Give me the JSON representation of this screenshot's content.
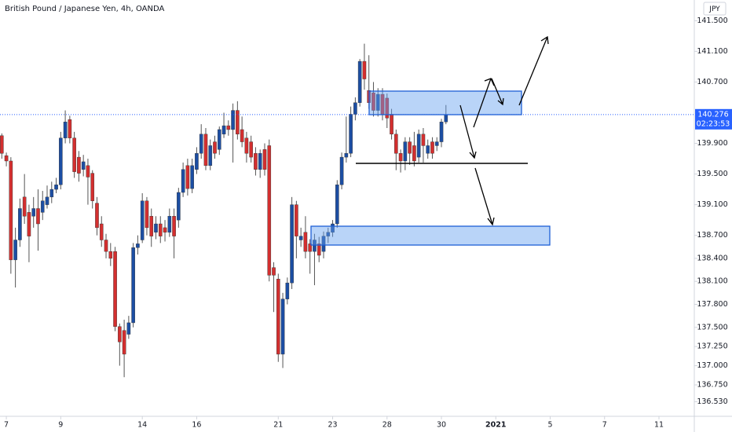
{
  "chart_data": {
    "type": "candlestick",
    "title": "British Pound / Japanese Yen, 4h, OANDA",
    "currency": "JPY",
    "last_price": {
      "value": 140.276,
      "label": "140.276"
    },
    "countdown": "02:23:53",
    "up_color": "#1c4ea3",
    "down_color": "#d32f2f",
    "grid": false,
    "ylim": [
      136.34,
      141.77
    ],
    "yticks": [
      {
        "value": 141.5,
        "label": "141.500"
      },
      {
        "value": 141.1,
        "label": "141.100"
      },
      {
        "value": 140.7,
        "label": "140.700"
      },
      {
        "value": 139.9,
        "label": "139.900"
      },
      {
        "value": 139.5,
        "label": "139.500"
      },
      {
        "value": 139.1,
        "label": "139.100"
      },
      {
        "value": 138.7,
        "label": "138.700"
      },
      {
        "value": 138.4,
        "label": "138.400"
      },
      {
        "value": 138.1,
        "label": "138.100"
      },
      {
        "value": 137.8,
        "label": "137.800"
      },
      {
        "value": 137.5,
        "label": "137.500"
      },
      {
        "value": 137.25,
        "label": "137.250"
      },
      {
        "value": 137,
        "label": "137.000"
      },
      {
        "value": 136.75,
        "label": "136.750"
      },
      {
        "value": 136.53,
        "label": "136.530"
      }
    ],
    "xlim": [
      -0.4,
      152.8
    ],
    "xticks": [
      {
        "value": 1,
        "label": "7"
      },
      {
        "value": 13,
        "label": "9"
      },
      {
        "value": 31,
        "label": "14"
      },
      {
        "value": 43,
        "label": "16"
      },
      {
        "value": 61,
        "label": "21"
      },
      {
        "value": 73,
        "label": "23"
      },
      {
        "value": 85,
        "label": "28"
      },
      {
        "value": 97,
        "label": "30"
      },
      {
        "value": 109,
        "label": "2021"
      },
      {
        "value": 121,
        "label": "5"
      },
      {
        "value": 133,
        "label": "7"
      },
      {
        "value": 145,
        "label": "11"
      }
    ],
    "ohlc": [
      [
        140.0,
        140.03,
        139.7,
        139.77
      ],
      [
        139.74,
        139.78,
        139.6,
        139.67
      ],
      [
        139.67,
        139.72,
        138.2,
        138.38
      ],
      [
        138.38,
        138.8,
        138.02,
        138.64
      ],
      [
        138.64,
        139.18,
        138.55,
        139.05
      ],
      [
        139.2,
        139.5,
        138.85,
        138.95
      ],
      [
        139.0,
        139.1,
        138.35,
        138.69
      ],
      [
        138.95,
        139.2,
        138.8,
        139.05
      ],
      [
        139.05,
        139.3,
        138.5,
        138.85
      ],
      [
        139.0,
        139.28,
        138.9,
        139.15
      ],
      [
        139.1,
        139.35,
        139.05,
        139.2
      ],
      [
        139.2,
        139.4,
        139.12,
        139.3
      ],
      [
        139.3,
        139.45,
        139.25,
        139.36
      ],
      [
        139.36,
        140.05,
        139.3,
        139.97
      ],
      [
        139.97,
        140.33,
        139.9,
        140.18
      ],
      [
        140.21,
        140.26,
        139.9,
        139.97
      ],
      [
        139.97,
        140.05,
        139.45,
        139.53
      ],
      [
        139.72,
        139.8,
        139.4,
        139.51
      ],
      [
        139.56,
        139.75,
        139.47,
        139.66
      ],
      [
        139.61,
        139.7,
        139.1,
        139.46
      ],
      [
        139.51,
        139.55,
        139.05,
        139.15
      ],
      [
        139.12,
        139.2,
        138.7,
        138.8
      ],
      [
        138.85,
        138.95,
        138.55,
        138.64
      ],
      [
        138.64,
        138.72,
        138.4,
        138.49
      ],
      [
        138.49,
        138.6,
        138.3,
        138.4
      ],
      [
        138.49,
        138.55,
        137.45,
        137.51
      ],
      [
        137.51,
        137.55,
        137.0,
        137.31
      ],
      [
        137.46,
        137.6,
        136.85,
        137.15
      ],
      [
        137.41,
        137.65,
        137.35,
        137.56
      ],
      [
        137.56,
        138.6,
        137.5,
        138.54
      ],
      [
        138.54,
        138.7,
        138.45,
        138.59
      ],
      [
        138.64,
        139.25,
        138.6,
        139.15
      ],
      [
        139.15,
        139.2,
        138.7,
        138.8
      ],
      [
        138.95,
        139.05,
        138.55,
        138.69
      ],
      [
        138.74,
        138.95,
        138.65,
        138.85
      ],
      [
        138.85,
        138.95,
        138.6,
        138.69
      ],
      [
        138.8,
        138.9,
        138.62,
        138.74
      ],
      [
        138.74,
        139.05,
        138.68,
        138.95
      ],
      [
        138.95,
        139.05,
        138.4,
        138.69
      ],
      [
        138.9,
        139.32,
        138.8,
        139.26
      ],
      [
        139.26,
        139.65,
        139.2,
        139.56
      ],
      [
        139.61,
        139.7,
        139.22,
        139.31
      ],
      [
        139.31,
        139.7,
        139.25,
        139.61
      ],
      [
        139.56,
        139.85,
        139.5,
        139.77
      ],
      [
        139.77,
        140.15,
        139.7,
        140.02
      ],
      [
        140.02,
        140.1,
        139.55,
        139.61
      ],
      [
        139.61,
        139.95,
        139.55,
        139.87
      ],
      [
        139.92,
        140.0,
        139.7,
        139.77
      ],
      [
        139.82,
        140.12,
        139.75,
        140.08
      ],
      [
        140.02,
        140.3,
        139.97,
        140.13
      ],
      [
        140.13,
        140.2,
        140.0,
        140.08
      ],
      [
        140.08,
        140.42,
        139.65,
        140.33
      ],
      [
        140.33,
        140.45,
        139.95,
        140.02
      ],
      [
        140.08,
        140.25,
        139.85,
        139.92
      ],
      [
        139.97,
        140.05,
        139.65,
        139.77
      ],
      [
        139.92,
        140.0,
        139.65,
        139.72
      ],
      [
        139.77,
        139.85,
        139.48,
        139.56
      ],
      [
        139.56,
        139.82,
        139.45,
        139.77
      ],
      [
        139.82,
        139.9,
        139.48,
        139.56
      ],
      [
        139.87,
        139.95,
        138.1,
        138.18
      ],
      [
        138.28,
        138.35,
        137.7,
        138.18
      ],
      [
        138.13,
        138.2,
        137.05,
        137.15
      ],
      [
        137.15,
        137.95,
        136.97,
        137.87
      ],
      [
        137.87,
        138.15,
        137.8,
        138.08
      ],
      [
        138.08,
        139.2,
        138.0,
        139.1
      ],
      [
        139.1,
        139.15,
        138.4,
        138.69
      ],
      [
        138.64,
        138.8,
        138.55,
        138.69
      ],
      [
        138.74,
        138.95,
        138.4,
        138.49
      ],
      [
        138.59,
        138.65,
        138.2,
        138.49
      ],
      [
        138.49,
        138.72,
        138.05,
        138.64
      ],
      [
        138.59,
        138.68,
        138.35,
        138.44
      ],
      [
        138.49,
        138.75,
        138.4,
        138.69
      ],
      [
        138.69,
        138.8,
        138.6,
        138.74
      ],
      [
        138.74,
        138.9,
        138.68,
        138.85
      ],
      [
        138.85,
        139.42,
        138.8,
        139.36
      ],
      [
        139.36,
        139.78,
        139.3,
        139.72
      ],
      [
        139.72,
        140.25,
        139.65,
        139.77
      ],
      [
        139.77,
        140.38,
        139.72,
        140.28
      ],
      [
        140.28,
        140.5,
        140.2,
        140.43
      ],
      [
        140.43,
        141.0,
        140.38,
        140.97
      ],
      [
        140.97,
        141.2,
        140.6,
        140.74
      ],
      [
        140.59,
        141.05,
        140.35,
        140.43
      ],
      [
        140.56,
        140.7,
        140.25,
        140.33
      ],
      [
        140.33,
        140.62,
        140.25,
        140.54
      ],
      [
        140.54,
        140.62,
        140.2,
        140.28
      ],
      [
        140.49,
        140.55,
        140.1,
        140.23
      ],
      [
        140.28,
        140.35,
        139.95,
        140.02
      ],
      [
        140.02,
        140.08,
        139.55,
        139.77
      ],
      [
        139.77,
        139.82,
        139.52,
        139.67
      ],
      [
        139.67,
        139.98,
        139.55,
        139.92
      ],
      [
        139.92,
        139.98,
        139.62,
        139.77
      ],
      [
        139.87,
        140.05,
        139.6,
        139.67
      ],
      [
        139.72,
        140.08,
        139.65,
        140.02
      ],
      [
        140.02,
        140.1,
        139.65,
        139.87
      ],
      [
        139.77,
        139.95,
        139.7,
        139.87
      ],
      [
        139.92,
        139.98,
        139.7,
        139.77
      ],
      [
        139.87,
        139.98,
        139.8,
        139.92
      ],
      [
        139.92,
        140.22,
        139.85,
        140.18
      ],
      [
        140.18,
        140.4,
        140.15,
        140.276
      ]
    ]
  }
}
